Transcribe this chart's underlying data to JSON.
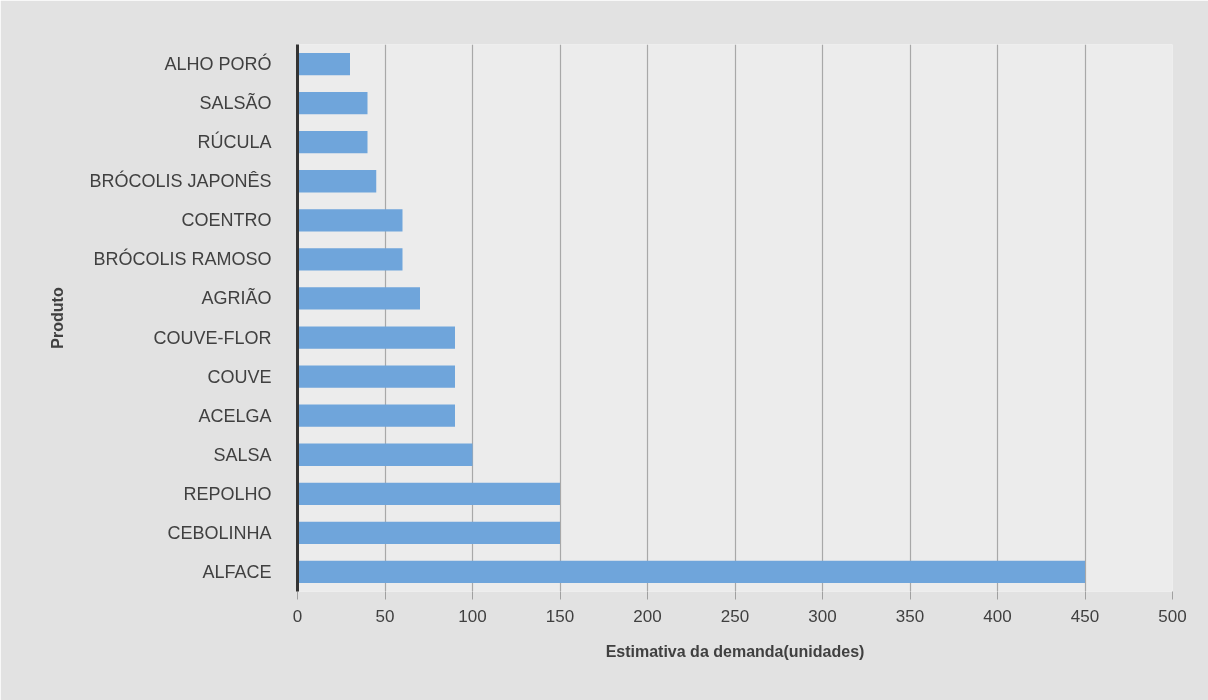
{
  "chart_data": {
    "type": "bar",
    "orientation": "horizontal",
    "xlabel": "Estimativa da demanda(unidades)",
    "ylabel": "Produto",
    "categories": [
      "ALHO PORÓ",
      "SALSÃO",
      "RÚCULA",
      "BRÓCOLIS JAPONÊS",
      "COENTRO",
      "BRÓCOLIS RAMOSO",
      "AGRIÃO",
      "COUVE-FLOR",
      "COUVE",
      "ACELGA",
      "SALSA",
      "REPOLHO",
      "CEBOLINHA",
      "ALFACE"
    ],
    "values": [
      30,
      40,
      40,
      45,
      60,
      60,
      70,
      90,
      90,
      90,
      100,
      150,
      150,
      450
    ],
    "color": "#6fa5db",
    "xlim": [
      0,
      500
    ],
    "xticks": [
      0,
      50,
      100,
      150,
      200,
      250,
      300,
      350,
      400,
      450,
      500
    ],
    "grid": "x"
  }
}
